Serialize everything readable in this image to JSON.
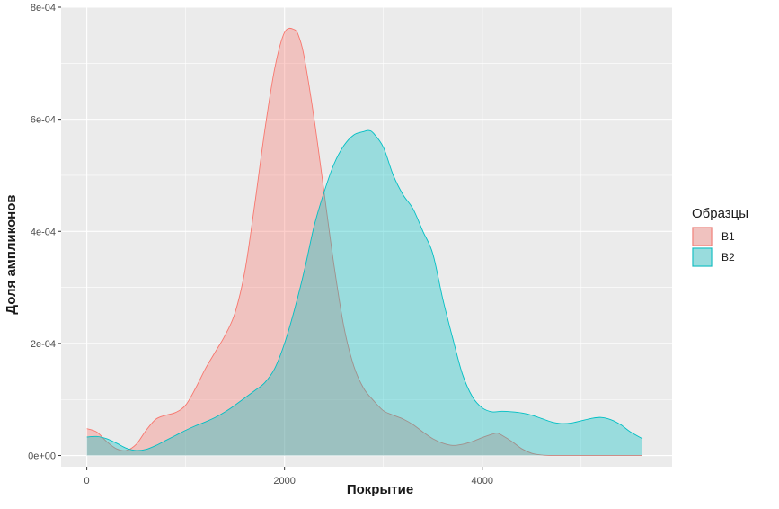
{
  "chart_data": {
    "type": "area",
    "title": "",
    "xlabel": "Покрытие",
    "ylabel": "Доля ампликонов",
    "xlim": [
      -260,
      5920
    ],
    "ylim": [
      -2e-05,
      0.0008
    ],
    "x_ticks": [
      0,
      2000,
      4000
    ],
    "x_tick_labels": [
      "0",
      "2000",
      "4000"
    ],
    "y_ticks": [
      0,
      0.0002,
      0.0004,
      0.0006,
      0.0008
    ],
    "y_tick_labels": [
      "0e+00",
      "2e-04",
      "4e-04",
      "6e-04",
      "8e-04"
    ],
    "grid": true,
    "panel_color": "#ebebeb",
    "grid_color": "#ffffff",
    "legend": {
      "title": "Образцы",
      "position": "right"
    },
    "series": [
      {
        "name": "B1",
        "color": "#f8766d",
        "fill": "#f8766d",
        "fill_opacity": 0.35,
        "x": [
          0,
          100,
          200,
          300,
          400,
          500,
          600,
          700,
          800,
          900,
          1000,
          1100,
          1200,
          1300,
          1400,
          1500,
          1600,
          1700,
          1800,
          1900,
          2000,
          2100,
          2150,
          2200,
          2300,
          2400,
          2500,
          2600,
          2700,
          2800,
          2900,
          3000,
          3100,
          3200,
          3300,
          3400,
          3500,
          3600,
          3700,
          3800,
          3900,
          4000,
          4100,
          4150,
          4200,
          4300,
          4400,
          4500,
          4600,
          4700,
          4800,
          5000,
          5200,
          5400,
          5620
        ],
        "y": [
          4.8e-05,
          4.2e-05,
          2.5e-05,
          1.2e-05,
          9e-06,
          2e-05,
          4.5e-05,
          6.5e-05,
          7.2e-05,
          7.7e-05,
          9e-05,
          0.00012,
          0.000155,
          0.000185,
          0.000215,
          0.000255,
          0.00033,
          0.00045,
          0.00058,
          0.00069,
          0.000755,
          0.00076,
          0.000745,
          0.00071,
          0.0006,
          0.00047,
          0.00034,
          0.00023,
          0.00016,
          0.00012,
          9.8e-05,
          8e-05,
          7.2e-05,
          6.5e-05,
          5.5e-05,
          4.2e-05,
          3e-05,
          2.2e-05,
          1.8e-05,
          2e-05,
          2.5e-05,
          3.2e-05,
          3.8e-05,
          4e-05,
          3.6e-05,
          2.5e-05,
          1.2e-05,
          4e-06,
          1e-06,
          0.0,
          0.0,
          0.0,
          0.0,
          0.0,
          0.0
        ]
      },
      {
        "name": "B2",
        "color": "#00bfc4",
        "fill": "#00bfc4",
        "fill_opacity": 0.35,
        "x": [
          0,
          100,
          200,
          300,
          400,
          500,
          600,
          700,
          800,
          900,
          1000,
          1100,
          1200,
          1300,
          1400,
          1500,
          1600,
          1700,
          1800,
          1900,
          2000,
          2100,
          2200,
          2300,
          2400,
          2500,
          2600,
          2700,
          2800,
          2850,
          2900,
          3000,
          3100,
          3200,
          3300,
          3400,
          3500,
          3600,
          3700,
          3800,
          3900,
          4000,
          4100,
          4200,
          4300,
          4400,
          4500,
          4600,
          4700,
          4800,
          4900,
          5000,
          5100,
          5200,
          5300,
          5400,
          5500,
          5620
        ],
        "y": [
          3.3e-05,
          3.4e-05,
          3e-05,
          2.2e-05,
          1.3e-05,
          9e-06,
          1.1e-05,
          1.8e-05,
          2.7e-05,
          3.6e-05,
          4.5e-05,
          5.3e-05,
          6e-05,
          6.8e-05,
          7.8e-05,
          9e-05,
          0.000103,
          0.000116,
          0.00013,
          0.000155,
          0.0002,
          0.00026,
          0.00033,
          0.00041,
          0.00047,
          0.00052,
          0.000553,
          0.000572,
          0.000578,
          0.00058,
          0.000575,
          0.00055,
          0.0005,
          0.000465,
          0.00044,
          0.0004,
          0.00036,
          0.00028,
          0.00021,
          0.000145,
          0.000105,
          8.5e-05,
          7.8e-05,
          7.9e-05,
          7.8e-05,
          7.6e-05,
          7.2e-05,
          6.6e-05,
          6e-05,
          5.7e-05,
          5.8e-05,
          6.2e-05,
          6.6e-05,
          6.8e-05,
          6.4e-05,
          5.5e-05,
          4.2e-05,
          3e-05
        ]
      }
    ]
  }
}
